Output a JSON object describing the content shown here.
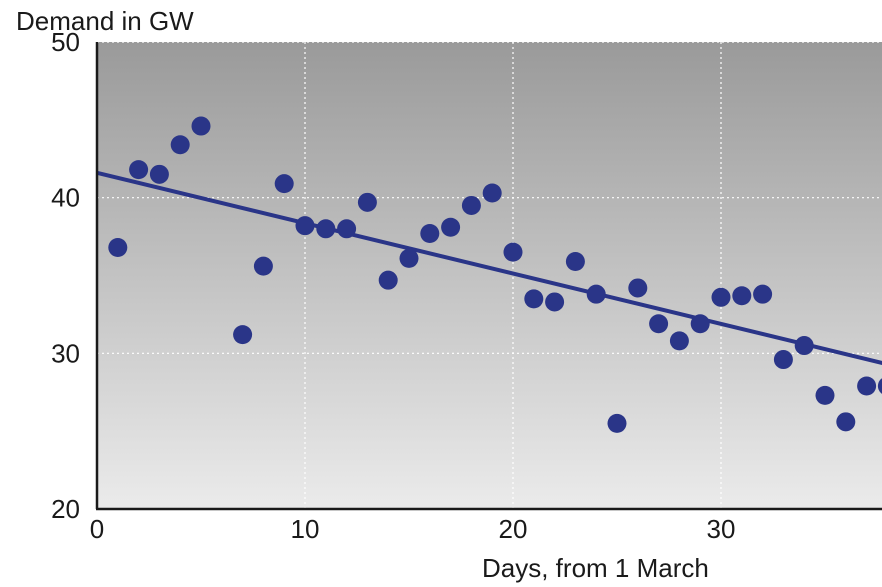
{
  "chart_data": {
    "type": "scatter",
    "ylabel": "Demand in GW",
    "xlabel": "Days, from 1 March",
    "xlim": [
      0,
      38
    ],
    "ylim": [
      20,
      50
    ],
    "x_ticks": [
      0,
      10,
      20,
      30
    ],
    "y_ticks": [
      20,
      30,
      40,
      50
    ],
    "grid": true,
    "grid_style": "dotted",
    "colors": {
      "points": "#2a3588",
      "trend_line": "#2a3588",
      "background_top": "#9a9a9a",
      "background_bottom": "#ebebeb",
      "grid": "#ffffff"
    },
    "points": [
      {
        "x": 1,
        "y": 36.8
      },
      {
        "x": 2,
        "y": 41.8
      },
      {
        "x": 3,
        "y": 41.5
      },
      {
        "x": 4,
        "y": 43.4
      },
      {
        "x": 5,
        "y": 44.6
      },
      {
        "x": 7,
        "y": 31.2
      },
      {
        "x": 8,
        "y": 35.6
      },
      {
        "x": 9,
        "y": 40.9
      },
      {
        "x": 10,
        "y": 38.2
      },
      {
        "x": 11,
        "y": 38.0
      },
      {
        "x": 12,
        "y": 38.0
      },
      {
        "x": 13,
        "y": 39.7
      },
      {
        "x": 14,
        "y": 34.7
      },
      {
        "x": 15,
        "y": 36.1
      },
      {
        "x": 16,
        "y": 37.7
      },
      {
        "x": 17,
        "y": 38.1
      },
      {
        "x": 18,
        "y": 39.5
      },
      {
        "x": 19,
        "y": 40.3
      },
      {
        "x": 20,
        "y": 36.5
      },
      {
        "x": 21,
        "y": 33.5
      },
      {
        "x": 22,
        "y": 33.3
      },
      {
        "x": 23,
        "y": 35.9
      },
      {
        "x": 24,
        "y": 33.8
      },
      {
        "x": 25,
        "y": 25.5
      },
      {
        "x": 26,
        "y": 34.2
      },
      {
        "x": 27,
        "y": 31.9
      },
      {
        "x": 28,
        "y": 30.8
      },
      {
        "x": 29,
        "y": 31.9
      },
      {
        "x": 30,
        "y": 33.6
      },
      {
        "x": 31,
        "y": 33.7
      },
      {
        "x": 32,
        "y": 33.8
      },
      {
        "x": 33,
        "y": 29.6
      },
      {
        "x": 34,
        "y": 30.5
      },
      {
        "x": 35,
        "y": 27.3
      },
      {
        "x": 36,
        "y": 25.6
      },
      {
        "x": 37,
        "y": 27.9
      },
      {
        "x": 38,
        "y": 27.9
      }
    ],
    "trend_line": {
      "x_start": 0,
      "y_start": 41.6,
      "x_end": 38,
      "y_end": 29.3
    }
  }
}
